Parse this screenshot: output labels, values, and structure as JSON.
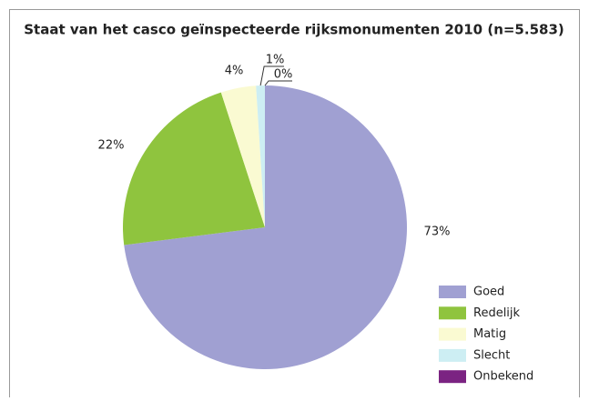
{
  "chart_data": {
    "type": "pie",
    "title": "Staat van het casco geïnspecteerde rijksmonumenten 2010 (n=5.583)",
    "categories": [
      "Goed",
      "Redelijk",
      "Matig",
      "Slecht",
      "Onbekend"
    ],
    "values": [
      73,
      22,
      4,
      1,
      0
    ],
    "value_labels": [
      "73%",
      "22%",
      "4%",
      "1%",
      "0%"
    ],
    "colors": [
      "#a0a0d2",
      "#8fc43e",
      "#fafad2",
      "#cdeef3",
      "#7b2382"
    ],
    "legend": "bottom-right"
  }
}
